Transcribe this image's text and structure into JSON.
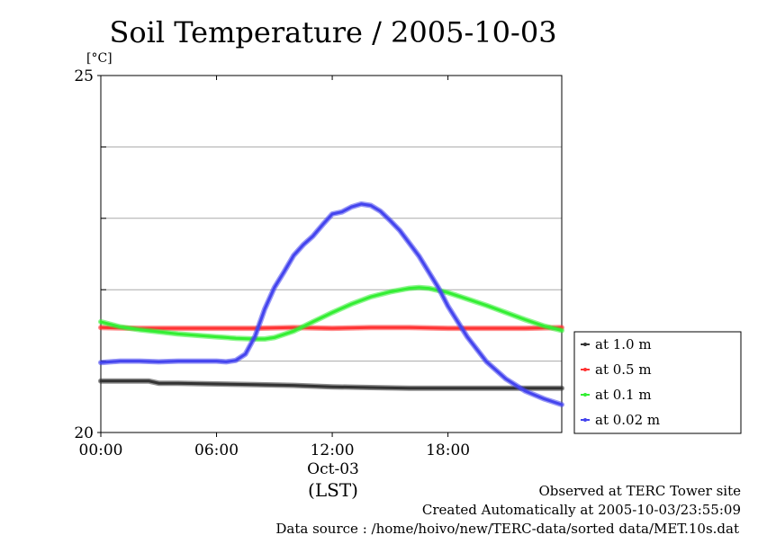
{
  "chart_data": {
    "type": "line",
    "title": "Soil Temperature / 2005-10-03",
    "y_unit": "[°C]",
    "ylim": [
      20,
      25
    ],
    "y_tick_labels": [
      "25",
      "20"
    ],
    "xlim": [
      0,
      23.9
    ],
    "x_ticks": [
      0,
      6,
      12,
      18
    ],
    "x_tick_labels": [
      "00:00",
      "06:00",
      "12:00",
      "18:00"
    ],
    "x_date_label": "Oct-03",
    "xlabel": "(LST)",
    "grid": true,
    "legend_position": "right",
    "series": [
      {
        "name": "at 1.0 m",
        "color": "#333333",
        "x": [
          0,
          1,
          2,
          2.5,
          3,
          4,
          6,
          8,
          10,
          12,
          14,
          16,
          18,
          20,
          22,
          23.9
        ],
        "y": [
          20.72,
          20.72,
          20.72,
          20.72,
          20.69,
          20.69,
          20.68,
          20.67,
          20.66,
          20.64,
          20.63,
          20.62,
          20.62,
          20.62,
          20.62,
          20.62
        ]
      },
      {
        "name": "at 0.5 m",
        "color": "#ff3333",
        "x": [
          0,
          2,
          4,
          6,
          8,
          10,
          12,
          14,
          16,
          18,
          20,
          22,
          23.9
        ],
        "y": [
          21.47,
          21.46,
          21.46,
          21.46,
          21.46,
          21.47,
          21.46,
          21.47,
          21.47,
          21.46,
          21.46,
          21.46,
          21.47
        ]
      },
      {
        "name": "at 0.1 m",
        "color": "#33ee33",
        "x": [
          0,
          1,
          2,
          3,
          4,
          5,
          6,
          7,
          8,
          8.5,
          9,
          10,
          11,
          12,
          13,
          14,
          15,
          16,
          16.5,
          17,
          18,
          19,
          20,
          21,
          22,
          23,
          23.9
        ],
        "y": [
          21.55,
          21.48,
          21.44,
          21.41,
          21.38,
          21.36,
          21.34,
          21.32,
          21.31,
          21.31,
          21.33,
          21.42,
          21.55,
          21.68,
          21.8,
          21.9,
          21.97,
          22.02,
          22.03,
          22.02,
          21.96,
          21.87,
          21.78,
          21.68,
          21.58,
          21.49,
          21.43
        ]
      },
      {
        "name": "at 0.02 m",
        "color": "#4444ee",
        "x": [
          0,
          0.5,
          1,
          2,
          3,
          4,
          5,
          6,
          6.5,
          7,
          7.5,
          8,
          8.5,
          9,
          9.5,
          10,
          10.5,
          11,
          11.5,
          12,
          12.5,
          13,
          13.5,
          14,
          14.5,
          15,
          15.5,
          16,
          16.5,
          17,
          17.5,
          18,
          19,
          20,
          21,
          22,
          23,
          23.9
        ],
        "y": [
          20.98,
          20.99,
          21.0,
          21.0,
          20.99,
          21.0,
          21.0,
          21.0,
          20.99,
          21.01,
          21.1,
          21.35,
          21.73,
          22.03,
          22.25,
          22.48,
          22.63,
          22.75,
          22.91,
          23.06,
          23.09,
          23.16,
          23.2,
          23.18,
          23.1,
          22.97,
          22.83,
          22.65,
          22.47,
          22.25,
          22.03,
          21.77,
          21.34,
          20.99,
          20.75,
          20.58,
          20.47,
          20.39
        ]
      }
    ]
  },
  "footer": {
    "line1": "Observed at TERC Tower site",
    "line2": "Created Automatically at 2005-10-03/23:55:09",
    "line3": "Data source : /home/hoivo/new/TERC-data/sorted  data/MET.10s.dat"
  }
}
